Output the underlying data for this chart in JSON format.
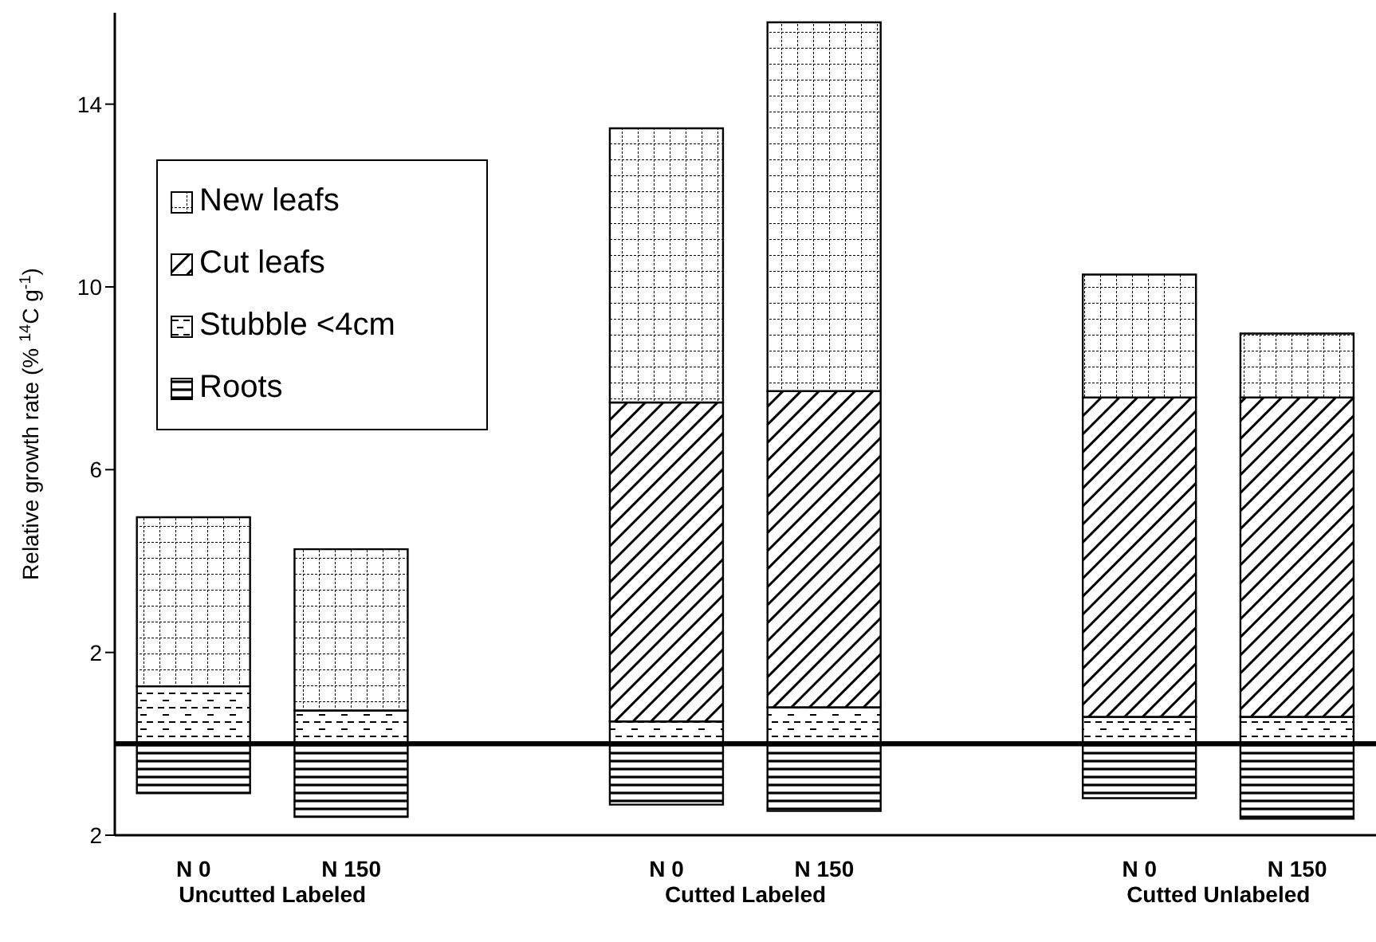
{
  "chart_data": {
    "type": "bar",
    "stacked": true,
    "ylabel": "Relative growth rate (% $^{14}$C g$^{-1}$)",
    "categories": [
      "N 0",
      "N 150",
      null,
      "N 0",
      "N 150",
      null,
      "N 0",
      "N 150"
    ],
    "series": [
      {
        "name": "Roots",
        "color": "#000000",
        "values": [
          -1.08,
          -1.6,
          null,
          -1.33,
          -1.47,
          null,
          -1.19,
          -1.64
        ]
      },
      {
        "name": "Stubble <4cm",
        "color": "#000000",
        "values": [
          1.26,
          0.73,
          null,
          0.49,
          0.8,
          null,
          0.59,
          0.59
        ]
      },
      {
        "name": "Cut leafs",
        "color": "#000000",
        "values": [
          0,
          0,
          null,
          6.98,
          6.92,
          null,
          6.99,
          6.99
        ]
      },
      {
        "name": "New leafs",
        "color": "#000000",
        "values": [
          3.7,
          3.53,
          null,
          6.0,
          8.07,
          null,
          2.69,
          1.4
        ]
      }
    ],
    "ylim": [
      -2,
      16
    ],
    "yticks": [
      {
        "value": -2,
        "label": "2"
      },
      2,
      6,
      10,
      14
    ],
    "ref_lines": [
      {
        "axis": "y",
        "value": 0,
        "color": "#000000"
      }
    ],
    "legend": "top left",
    "annotations": [
      "Uncutted Labeled",
      "Cutted Labeled",
      "Cutted Unlabeled"
    ]
  }
}
